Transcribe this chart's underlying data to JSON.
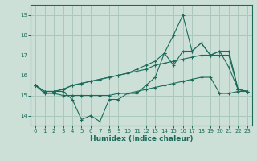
{
  "xlabel": "Humidex (Indice chaleur)",
  "ylabel": "",
  "xlim": [
    -0.5,
    23.5
  ],
  "ylim": [
    13.5,
    19.5
  ],
  "yticks": [
    14,
    15,
    16,
    17,
    18,
    19
  ],
  "xticks": [
    0,
    1,
    2,
    3,
    4,
    5,
    6,
    7,
    8,
    9,
    10,
    11,
    12,
    13,
    14,
    15,
    16,
    17,
    18,
    19,
    20,
    21,
    22,
    23
  ],
  "bg_color": "#cde0d8",
  "grid_color": "#aac8bc",
  "line_color": "#1a6b5a",
  "series": {
    "line1": [
      15.5,
      15.2,
      15.2,
      15.2,
      14.8,
      13.8,
      14.0,
      13.7,
      14.8,
      14.8,
      15.1,
      15.1,
      15.5,
      15.9,
      17.1,
      16.5,
      17.2,
      17.2,
      17.6,
      17.0,
      17.2,
      16.4,
      15.3,
      15.2
    ],
    "line2": [
      15.5,
      15.1,
      15.1,
      15.0,
      15.0,
      15.0,
      15.0,
      15.0,
      15.0,
      15.1,
      15.1,
      15.2,
      15.3,
      15.4,
      15.5,
      15.6,
      15.7,
      15.8,
      15.9,
      15.9,
      15.1,
      15.1,
      15.2,
      15.2
    ],
    "line3": [
      15.5,
      15.2,
      15.2,
      15.3,
      15.5,
      15.6,
      15.7,
      15.8,
      15.9,
      16.0,
      16.1,
      16.2,
      16.3,
      16.5,
      16.6,
      16.7,
      16.8,
      16.9,
      17.0,
      17.0,
      17.0,
      17.0,
      15.3,
      15.2
    ],
    "line4": [
      15.5,
      15.2,
      15.2,
      15.3,
      15.5,
      15.6,
      15.7,
      15.8,
      15.9,
      16.0,
      16.1,
      16.3,
      16.5,
      16.7,
      17.1,
      18.0,
      19.0,
      17.2,
      17.6,
      17.0,
      17.2,
      17.2,
      15.3,
      15.2
    ]
  }
}
